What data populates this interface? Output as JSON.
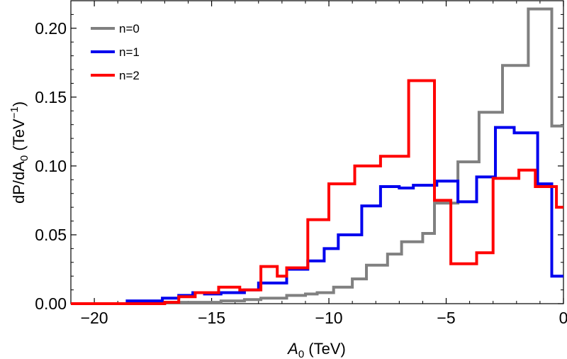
{
  "chart_data": {
    "type": "line",
    "subtype": "step-histogram",
    "title": "",
    "xlabel": {
      "symbol": "A",
      "sub": "0",
      "unit": " (TeV)"
    },
    "ylabel": {
      "prefix": "dP/dA",
      "sub": "0",
      "unit": " (TeV",
      "sup": "−1",
      "close": ")"
    },
    "xlim": [
      -21,
      0
    ],
    "ylim": [
      0,
      0.22
    ],
    "xticks": [
      -20,
      -15,
      -10,
      -5,
      0
    ],
    "xtick_labels": [
      "−20",
      "−15",
      "−10",
      "−5",
      "0"
    ],
    "yticks": [
      0,
      0.05,
      0.1,
      0.15,
      0.2
    ],
    "ytick_labels": [
      "0.00",
      "0.05",
      "0.10",
      "0.15",
      "0.20"
    ],
    "legend_position": "top-left",
    "series": [
      {
        "name": "n=0",
        "color": "#808080",
        "edges": [
          -21,
          -17.1,
          -14.6,
          -13.6,
          -12.9,
          -12.4,
          -11.8,
          -11.0,
          -10.5,
          -9.8,
          -9.0,
          -8.4,
          -7.5,
          -6.9,
          -6.0,
          -5.5,
          -4.5,
          -3.6,
          -2.6,
          -1.5,
          -0.5,
          0
        ],
        "values": [
          0.0,
          0.001,
          0.002,
          0.003,
          0.004,
          0.004,
          0.006,
          0.007,
          0.008,
          0.012,
          0.018,
          0.028,
          0.036,
          0.045,
          0.051,
          0.073,
          0.103,
          0.139,
          0.173,
          0.214,
          0.129
        ]
      },
      {
        "name": "n=1",
        "color": "#0000ee",
        "edges": [
          -21,
          -18.6,
          -17.1,
          -16.4,
          -15.8,
          -15.3,
          -14.6,
          -13.6,
          -13.0,
          -12.4,
          -11.8,
          -10.9,
          -10.2,
          -9.6,
          -8.6,
          -7.8,
          -7.0,
          -6.4,
          -5.4,
          -4.5,
          -3.7,
          -2.9,
          -2.1,
          -1.1,
          -0.5,
          0
        ],
        "values": [
          0.0,
          0.002,
          0.004,
          0.006,
          0.008,
          0.007,
          0.008,
          0.01,
          0.015,
          0.015,
          0.025,
          0.031,
          0.04,
          0.05,
          0.071,
          0.085,
          0.084,
          0.086,
          0.089,
          0.074,
          0.092,
          0.128,
          0.124,
          0.087,
          0.02
        ]
      },
      {
        "name": "n=2",
        "color": "#ff0000",
        "edges": [
          -21,
          -17.0,
          -16.4,
          -15.7,
          -14.7,
          -13.8,
          -12.9,
          -12.2,
          -11.8,
          -10.9,
          -10.0,
          -8.9,
          -7.8,
          -6.6,
          -5.5,
          -4.8,
          -3.7,
          -3.0,
          -1.9,
          -1.2,
          -0.3,
          0
        ],
        "values": [
          0.0,
          0.001,
          0.005,
          0.008,
          0.012,
          0.01,
          0.027,
          0.02,
          0.026,
          0.061,
          0.087,
          0.1,
          0.107,
          0.162,
          0.075,
          0.029,
          0.037,
          0.091,
          0.097,
          0.085,
          0.07
        ]
      }
    ]
  }
}
